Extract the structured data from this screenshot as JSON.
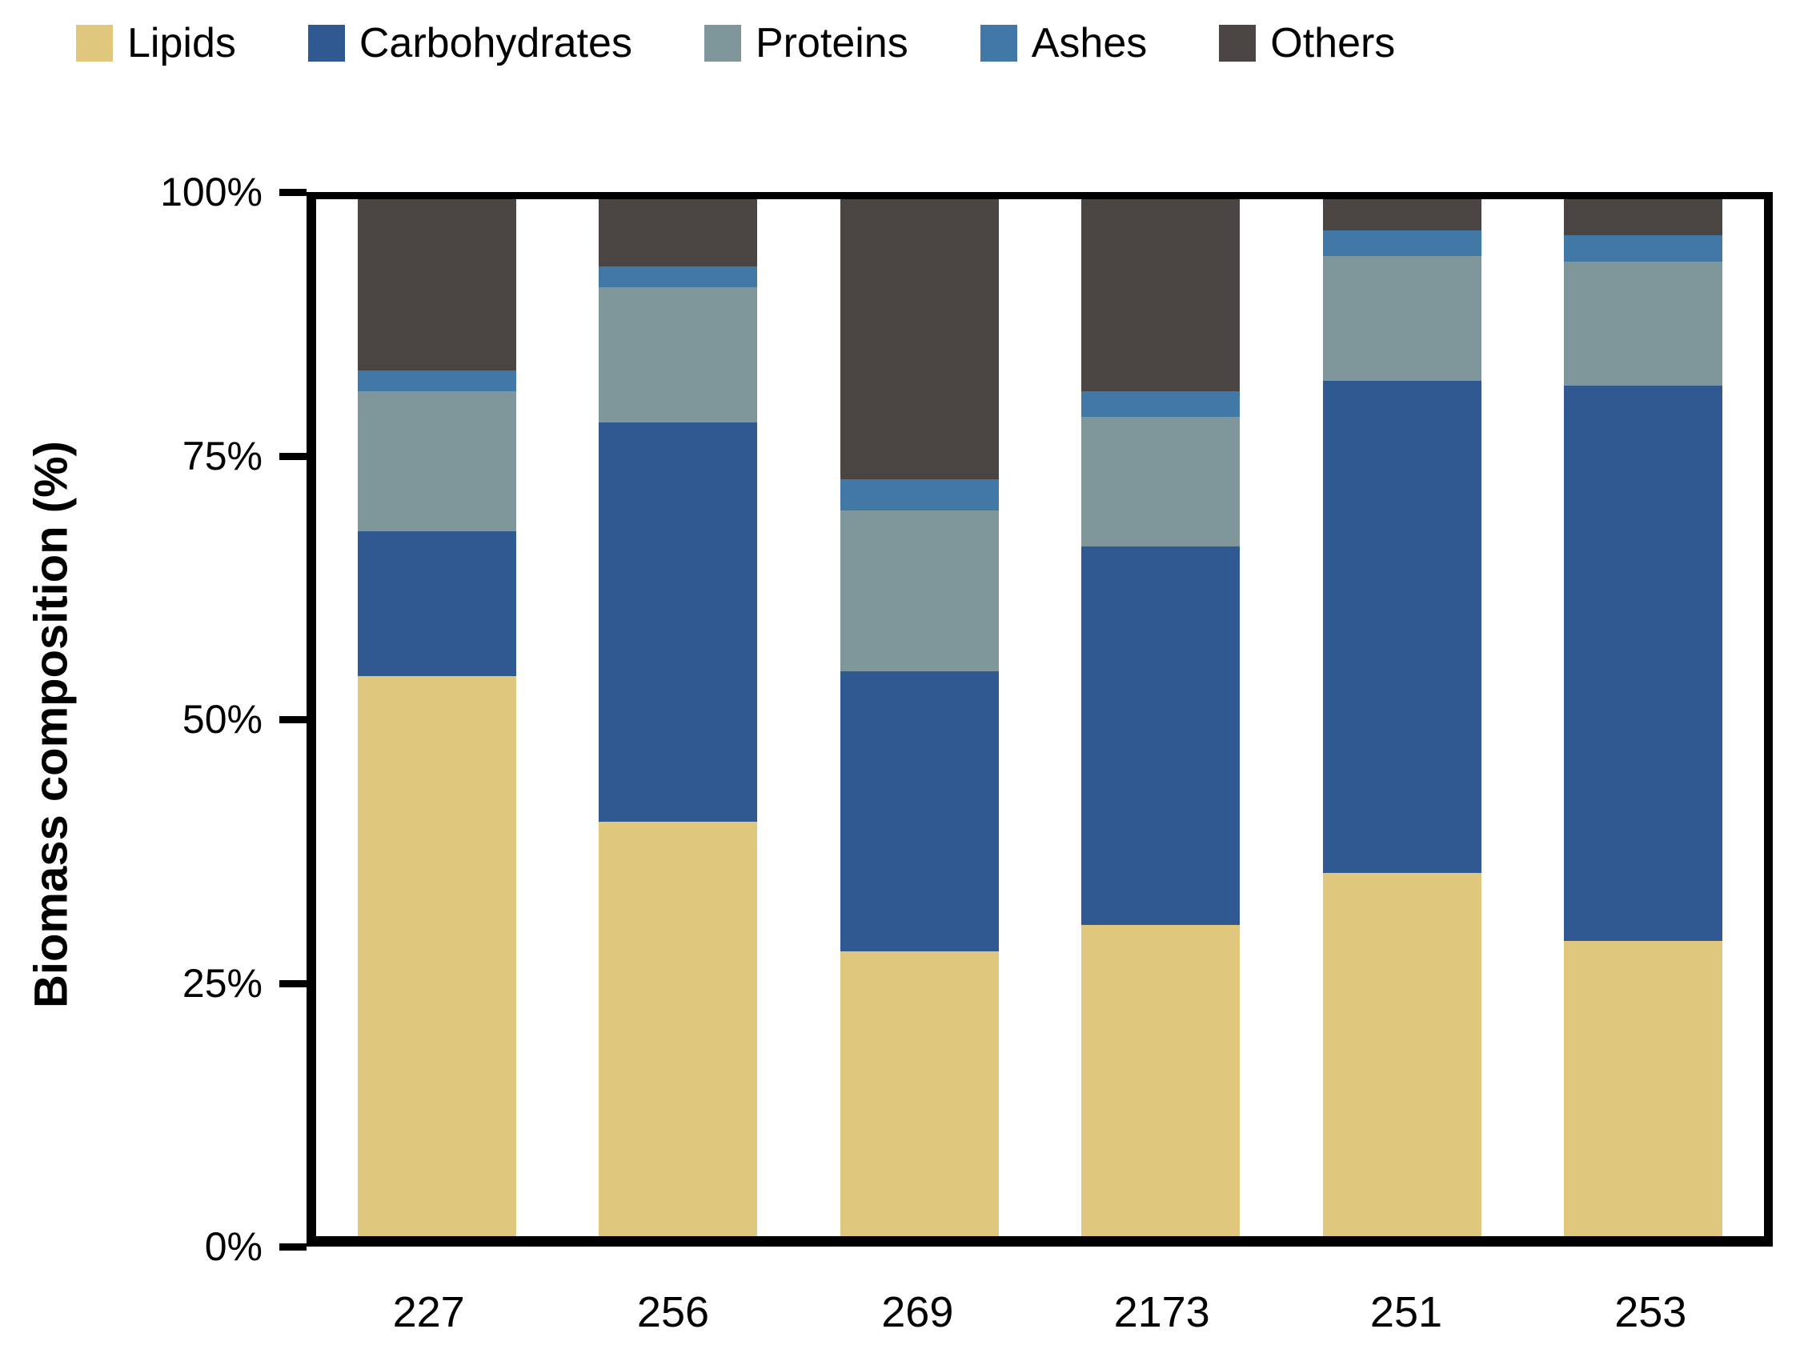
{
  "y_axis": {
    "title": "Biomass composition (%)",
    "tick_labels_top_down": [
      "100%",
      "75%",
      "50%",
      "25%",
      "0%"
    ]
  },
  "chart_data": {
    "type": "bar",
    "stacked": true,
    "orientation": "vertical",
    "title": "",
    "xlabel": "",
    "ylabel": "Biomass composition (%)",
    "ylim": [
      0,
      100
    ],
    "ytick_labels": [
      "0%",
      "25%",
      "50%",
      "75%",
      "100%"
    ],
    "grid": false,
    "legend_position": "top",
    "categories": [
      "227",
      "256",
      "269",
      "2173",
      "251",
      "253"
    ],
    "series": [
      {
        "name": "Lipids",
        "color": "#E0C77E",
        "values": [
          54,
          40,
          27.5,
          30,
          35,
          28.5
        ]
      },
      {
        "name": "Carbohydrates",
        "color": "#2F5990",
        "values": [
          14,
          38.5,
          27,
          36.5,
          47.5,
          53.5
        ]
      },
      {
        "name": "Proteins",
        "color": "#7F979A",
        "values": [
          13.5,
          13,
          15.5,
          12.5,
          12,
          12
        ]
      },
      {
        "name": "Ashes",
        "color": "#4178A5",
        "values": [
          2,
          2,
          3,
          2.5,
          2.5,
          2.5
        ]
      },
      {
        "name": "Others",
        "color": "#4A4443",
        "values": [
          16.5,
          6.5,
          27,
          18.5,
          3,
          3.5
        ]
      }
    ]
  }
}
